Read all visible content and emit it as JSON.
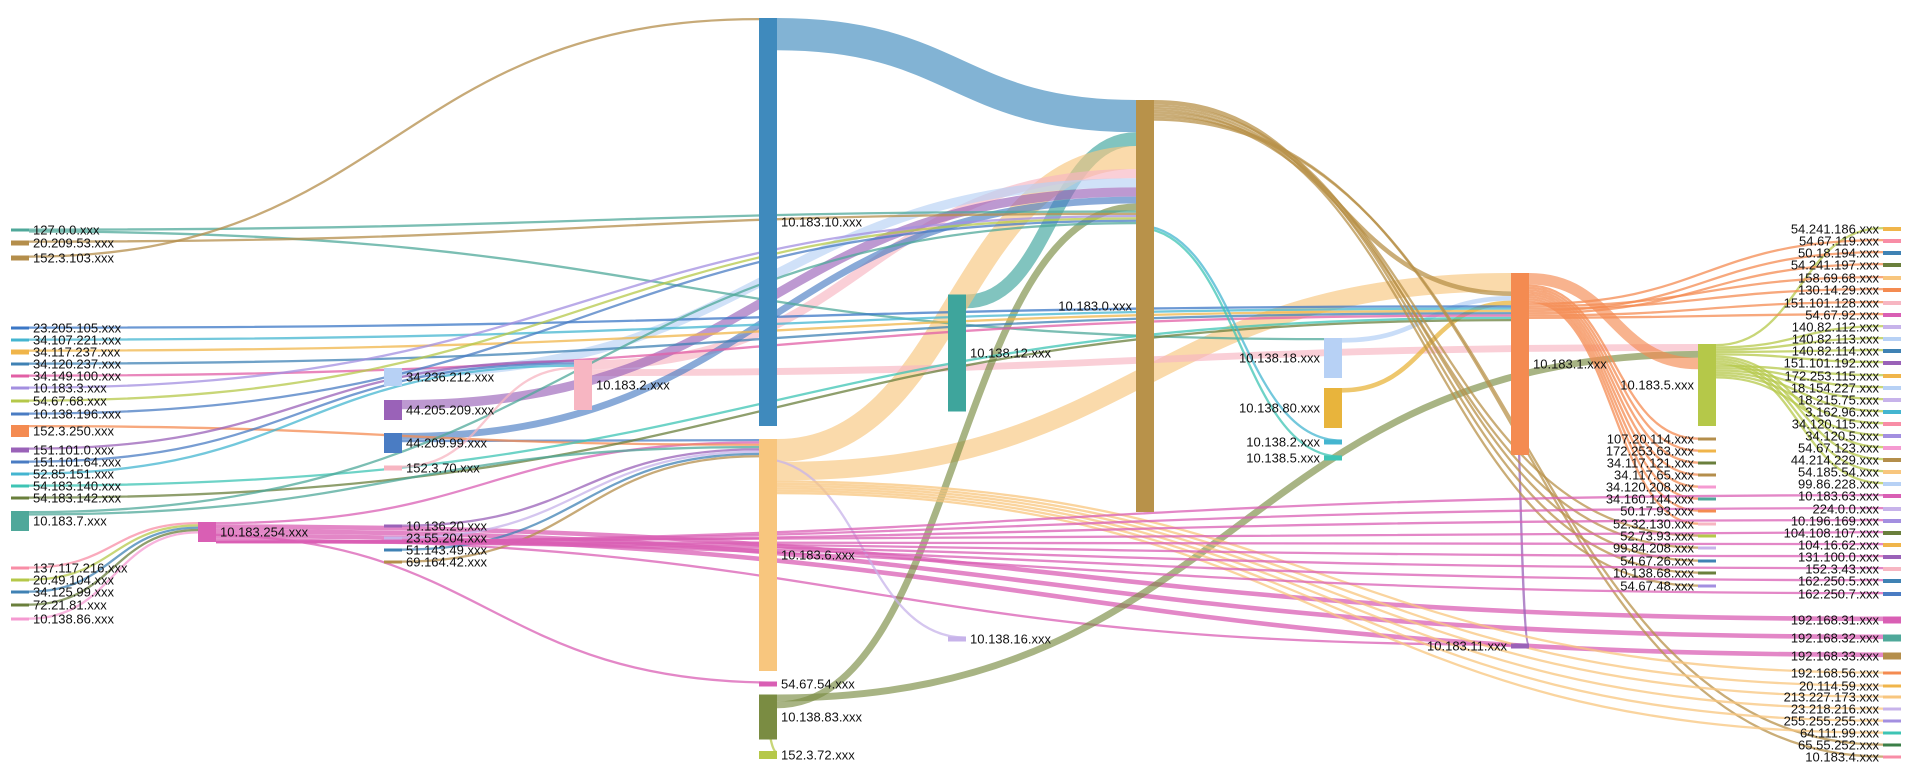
{
  "diagram": {
    "type": "sankey",
    "nodes": [
      {
        "id": "127.0.0.xxx",
        "color": "#4fa89a"
      },
      {
        "id": "20.209.53.xxx",
        "color": "#b48e4b"
      },
      {
        "id": "152.3.103.xxx",
        "color": "#b48e4b"
      },
      {
        "id": "23.205.105.xxx",
        "color": "#3b77c6"
      },
      {
        "id": "34.107.221.xxx",
        "color": "#44b5d0"
      },
      {
        "id": "34.117.237.xxx",
        "color": "#f0b54a"
      },
      {
        "id": "34.120.237.xxx",
        "color": "#3f82b4"
      },
      {
        "id": "34.149.100.xxx",
        "color": "#e25fa5"
      },
      {
        "id": "10.183.3.xxx",
        "color": "#a38fe0"
      },
      {
        "id": "54.67.68.xxx",
        "color": "#b5c849"
      },
      {
        "id": "10.138.196.xxx",
        "color": "#4a7cc3"
      },
      {
        "id": "152.3.250.xxx",
        "color": "#f48b51"
      },
      {
        "id": "151.101.0.xxx",
        "color": "#9a62b8"
      },
      {
        "id": "151.101.64.xxx",
        "color": "#4a7cc3"
      },
      {
        "id": "52.85.151.xxx",
        "color": "#44b5d0"
      },
      {
        "id": "54.183.140.xxx",
        "color": "#3ec4b4"
      },
      {
        "id": "54.183.142.xxx",
        "color": "#6a7f3c"
      },
      {
        "id": "10.183.7.xxx",
        "color": "#4fa89a"
      },
      {
        "id": "137.117.216.xxx",
        "color": "#f88da6"
      },
      {
        "id": "20.49.104.xxx",
        "color": "#b5c849"
      },
      {
        "id": "34.125.99.xxx",
        "color": "#3f82b4"
      },
      {
        "id": "72.21.81.xxx",
        "color": "#6a7f3c"
      },
      {
        "id": "10.138.86.xxx",
        "color": "#f59ad1"
      },
      {
        "id": "34.236.212.xxx",
        "color": "#b7d1f5"
      },
      {
        "id": "44.205.209.xxx",
        "color": "#9a62b8"
      },
      {
        "id": "44.209.99.xxx",
        "color": "#4a7cc3"
      },
      {
        "id": "152.3.70.xxx",
        "color": "#f7b6c2"
      },
      {
        "id": "10.183.254.xxx",
        "color": "#d95fb4"
      },
      {
        "id": "10.136.20.xxx",
        "color": "#9a62b8"
      },
      {
        "id": "23.55.204.xxx",
        "color": "#c7b3ea"
      },
      {
        "id": "51.143.49.xxx",
        "color": "#3f82b4"
      },
      {
        "id": "69.164.42.xxx",
        "color": "#b48e4b"
      },
      {
        "id": "10.183.2.xxx",
        "color": "#f7b6c2"
      },
      {
        "id": "10.183.10.xxx",
        "color": "#3f8abd"
      },
      {
        "id": "10.183.6.xxx",
        "color": "#f8c67e"
      },
      {
        "id": "54.67.54.xxx",
        "color": "#d95fb4"
      },
      {
        "id": "10.138.83.xxx",
        "color": "#7a8c42"
      },
      {
        "id": "152.3.72.xxx",
        "color": "#b5c849"
      },
      {
        "id": "10.138.12.xxx",
        "color": "#3ea59c"
      },
      {
        "id": "10.138.16.xxx",
        "color": "#c7b3ea"
      },
      {
        "id": "10.183.0.xxx",
        "color": "#b8924a"
      },
      {
        "id": "10.138.18.xxx",
        "color": "#b7d1f5"
      },
      {
        "id": "10.138.80.xxx",
        "color": "#e8b43c"
      },
      {
        "id": "10.138.2.xxx",
        "color": "#44b5d0"
      },
      {
        "id": "10.138.5.xxx",
        "color": "#3ec4b4"
      },
      {
        "id": "10.183.1.xxx",
        "color": "#f48b51"
      },
      {
        "id": "10.183.11.xxx",
        "color": "#9a62b8"
      },
      {
        "id": "107.20.114.xxx",
        "color": "#b48e4b"
      },
      {
        "id": "172.253.63.xxx",
        "color": "#f0b54a"
      },
      {
        "id": "34.117.121.xxx",
        "color": "#6a7f3c"
      },
      {
        "id": "34.117.65.xxx",
        "color": "#b48e4b"
      },
      {
        "id": "34.120.208.xxx",
        "color": "#f59ad1"
      },
      {
        "id": "34.160.144.xxx",
        "color": "#4fa89a"
      },
      {
        "id": "50.17.93.xxx",
        "color": "#f48b51"
      },
      {
        "id": "52.32.130.xxx",
        "color": "#f7b6c2"
      },
      {
        "id": "52.73.93.xxx",
        "color": "#b5c849"
      },
      {
        "id": "99.84.208.xxx",
        "color": "#c7b3ea"
      },
      {
        "id": "54.67.26.xxx",
        "color": "#3f82b4"
      },
      {
        "id": "10.138.68.xxx",
        "color": "#6a7f3c"
      },
      {
        "id": "54.67.48.xxx",
        "color": "#a38fe0"
      },
      {
        "id": "10.183.5.xxx",
        "color": "#b5c849"
      },
      {
        "id": "54.241.186.xxx",
        "color": "#f0b54a"
      },
      {
        "id": "54.67.119.xxx",
        "color": "#f88da6"
      },
      {
        "id": "50.18.194.xxx",
        "color": "#3f82b4"
      },
      {
        "id": "54.241.197.xxx",
        "color": "#6a7f3c"
      },
      {
        "id": "158.69.68.xxx",
        "color": "#f8c67e"
      },
      {
        "id": "130.14.29.xxx",
        "color": "#f48b51"
      },
      {
        "id": "151.101.128.xxx",
        "color": "#f7b6c2"
      },
      {
        "id": "54.67.92.xxx",
        "color": "#d95fb4"
      },
      {
        "id": "140.82.112.xxx",
        "color": "#c7b3ea"
      },
      {
        "id": "140.82.113.xxx",
        "color": "#b7d1f5"
      },
      {
        "id": "140.82.114.xxx",
        "color": "#3f82b4"
      },
      {
        "id": "151.101.192.xxx",
        "color": "#9a62b8"
      },
      {
        "id": "172.253.115.xxx",
        "color": "#f0b54a"
      },
      {
        "id": "18.154.227.xxx",
        "color": "#b7d1f5"
      },
      {
        "id": "18.215.75.xxx",
        "color": "#c7b3ea"
      },
      {
        "id": "3.162.96.xxx",
        "color": "#44b5d0"
      },
      {
        "id": "34.120.115.xxx",
        "color": "#f88da6"
      },
      {
        "id": "34.120.5.xxx",
        "color": "#a38fe0"
      },
      {
        "id": "54.67.123.xxx",
        "color": "#f59ad1"
      },
      {
        "id": "44.214.229.xxx",
        "color": "#b48e4b"
      },
      {
        "id": "54.185.54.xxx",
        "color": "#f8c67e"
      },
      {
        "id": "99.86.228.xxx",
        "color": "#b7d1f5"
      },
      {
        "id": "10.183.63.xxx",
        "color": "#d95fb4"
      },
      {
        "id": "224.0.0.xxx",
        "color": "#c7b3ea"
      },
      {
        "id": "10.196.169.xxx",
        "color": "#a38fe0"
      },
      {
        "id": "104.108.107.xxx",
        "color": "#6a7f3c"
      },
      {
        "id": "104.16.62.xxx",
        "color": "#f0b54a"
      },
      {
        "id": "131.100.0.xxx",
        "color": "#9a62b8"
      },
      {
        "id": "152.3.43.xxx",
        "color": "#f7b6c2"
      },
      {
        "id": "162.250.5.xxx",
        "color": "#3f82b4"
      },
      {
        "id": "162.250.7.xxx",
        "color": "#4a7cc3"
      },
      {
        "id": "192.168.31.xxx",
        "color": "#d95fb4"
      },
      {
        "id": "192.168.32.xxx",
        "color": "#4fa89a"
      },
      {
        "id": "192.168.33.xxx",
        "color": "#b48e4b"
      },
      {
        "id": "192.168.56.xxx",
        "color": "#f48b51"
      },
      {
        "id": "20.114.59.xxx",
        "color": "#f0b54a"
      },
      {
        "id": "213.227.173.xxx",
        "color": "#f8c67e"
      },
      {
        "id": "23.218.216.xxx",
        "color": "#c7b3ea"
      },
      {
        "id": "255.255.255.xxx",
        "color": "#a38fe0"
      },
      {
        "id": "64.111.99.xxx",
        "color": "#3ec4b4"
      },
      {
        "id": "65.55.252.xxx",
        "color": "#3b7f47"
      },
      {
        "id": "10.183.4.xxx",
        "color": "#f88da6"
      }
    ],
    "links": [
      {
        "source": "10.183.10.xxx",
        "target": "10.183.0.xxx",
        "value": 14
      },
      {
        "source": "10.138.12.xxx",
        "target": "10.183.0.xxx",
        "value": 6
      },
      {
        "source": "10.183.6.xxx",
        "target": "10.183.0.xxx",
        "value": 10
      },
      {
        "source": "10.183.6.xxx",
        "target": "10.183.1.xxx",
        "value": 8
      },
      {
        "source": "10.183.2.xxx",
        "target": "10.183.0.xxx",
        "value": 4
      },
      {
        "source": "10.183.2.xxx",
        "target": "10.183.5.xxx",
        "value": 3
      },
      {
        "source": "34.236.212.xxx",
        "target": "10.183.0.xxx",
        "value": 4
      },
      {
        "source": "44.205.209.xxx",
        "target": "10.183.0.xxx",
        "value": 4
      },
      {
        "source": "44.209.99.xxx",
        "target": "10.183.0.xxx",
        "value": 3
      },
      {
        "source": "44.209.99.xxx",
        "target": "10.183.6.xxx",
        "value": 1
      },
      {
        "source": "10.183.254.xxx",
        "target": "10.183.6.xxx",
        "value": 1
      },
      {
        "source": "10.183.254.xxx",
        "target": "192.168.31.xxx",
        "value": 2
      },
      {
        "source": "10.183.254.xxx",
        "target": "192.168.32.xxx",
        "value": 2
      },
      {
        "source": "10.183.254.xxx",
        "target": "192.168.33.xxx",
        "value": 2
      },
      {
        "source": "10.183.254.xxx",
        "target": "10.183.11.xxx",
        "value": 1
      },
      {
        "source": "10.138.83.xxx",
        "target": "10.183.5.xxx",
        "value": 3
      },
      {
        "source": "10.138.83.xxx",
        "target": "10.183.0.xxx",
        "value": 3
      },
      {
        "source": "10.183.1.xxx",
        "target": "10.183.5.xxx",
        "value": 5
      },
      {
        "source": "10.183.0.xxx",
        "target": "10.183.1.xxx",
        "value": 2
      },
      {
        "source": "10.138.18.xxx",
        "target": "10.183.1.xxx",
        "value": 2
      },
      {
        "source": "10.138.80.xxx",
        "target": "10.183.1.xxx",
        "value": 2
      },
      {
        "source": "10.183.5.xxx",
        "target": "54.241.186.xxx",
        "value": 1
      },
      {
        "source": "10.183.5.xxx",
        "target": "140.82.112.xxx",
        "value": 1
      },
      {
        "source": "10.183.5.xxx",
        "target": "140.82.113.xxx",
        "value": 1
      },
      {
        "source": "10.183.5.xxx",
        "target": "140.82.114.xxx",
        "value": 1
      },
      {
        "source": "10.183.5.xxx",
        "target": "151.101.192.xxx",
        "value": 1
      },
      {
        "source": "10.183.1.xxx",
        "target": "107.20.114.xxx",
        "value": 1
      },
      {
        "source": "10.183.1.xxx",
        "target": "172.253.63.xxx",
        "value": 1
      },
      {
        "source": "10.183.1.xxx",
        "target": "34.117.121.xxx",
        "value": 1
      },
      {
        "source": "10.183.1.xxx",
        "target": "34.117.65.xxx",
        "value": 1
      },
      {
        "source": "10.183.1.xxx",
        "target": "34.120.208.xxx",
        "value": 1
      },
      {
        "source": "10.183.1.xxx",
        "target": "34.160.144.xxx",
        "value": 1
      },
      {
        "source": "10.183.1.xxx",
        "target": "50.17.93.xxx",
        "value": 1
      },
      {
        "source": "10.183.1.xxx",
        "target": "52.32.130.xxx",
        "value": 1
      },
      {
        "source": "10.183.1.xxx",
        "target": "54.67.119.xxx",
        "value": 1
      },
      {
        "source": "10.183.1.xxx",
        "target": "158.69.68.xxx",
        "value": 1
      },
      {
        "source": "10.183.1.xxx",
        "target": "130.14.29.xxx",
        "value": 1
      },
      {
        "source": "127.0.0.xxx",
        "target": "10.183.0.xxx",
        "value": 1
      },
      {
        "source": "127.0.0.xxx",
        "target": "10.138.18.xxx",
        "value": 1
      },
      {
        "source": "20.209.53.xxx",
        "target": "10.183.0.xxx",
        "value": 1
      },
      {
        "source": "152.3.103.xxx",
        "target": "10.183.10.xxx",
        "value": 1
      },
      {
        "source": "23.205.105.xxx",
        "target": "10.183.1.xxx",
        "value": 1
      },
      {
        "source": "34.107.221.xxx",
        "target": "10.183.1.xxx",
        "value": 1
      },
      {
        "source": "34.117.237.xxx",
        "target": "10.183.1.xxx",
        "value": 1
      },
      {
        "source": "34.120.237.xxx",
        "target": "10.183.1.xxx",
        "value": 1
      },
      {
        "source": "34.149.100.xxx",
        "target": "10.183.1.xxx",
        "value": 1
      },
      {
        "source": "10.183.3.xxx",
        "target": "10.183.0.xxx",
        "value": 1
      },
      {
        "source": "54.67.68.xxx",
        "target": "10.183.0.xxx",
        "value": 1
      },
      {
        "source": "10.138.196.xxx",
        "target": "10.183.0.xxx",
        "value": 1
      },
      {
        "source": "152.3.250.xxx",
        "target": "10.183.6.xxx",
        "value": 1
      },
      {
        "source": "151.101.0.xxx",
        "target": "10.183.2.xxx",
        "value": 1
      },
      {
        "source": "151.101.64.xxx",
        "target": "10.183.2.xxx",
        "value": 1
      },
      {
        "source": "52.85.151.xxx",
        "target": "10.183.2.xxx",
        "value": 1
      },
      {
        "source": "54.183.140.xxx",
        "target": "10.183.1.xxx",
        "value": 1
      },
      {
        "source": "54.183.142.xxx",
        "target": "10.183.1.xxx",
        "value": 1
      },
      {
        "source": "10.183.7.xxx",
        "target": "10.183.0.xxx",
        "value": 1
      },
      {
        "source": "10.183.7.xxx",
        "target": "10.183.6.xxx",
        "value": 1
      },
      {
        "source": "137.117.216.xxx",
        "target": "10.183.254.xxx",
        "value": 1
      },
      {
        "source": "20.49.104.xxx",
        "target": "10.183.254.xxx",
        "value": 1
      },
      {
        "source": "34.125.99.xxx",
        "target": "10.183.254.xxx",
        "value": 1
      },
      {
        "source": "72.21.81.xxx",
        "target": "10.183.254.xxx",
        "value": 1
      },
      {
        "source": "10.138.86.xxx",
        "target": "10.183.254.xxx",
        "value": 1
      },
      {
        "source": "10.136.20.xxx",
        "target": "10.183.6.xxx",
        "value": 1
      },
      {
        "source": "23.55.204.xxx",
        "target": "10.183.6.xxx",
        "value": 1
      },
      {
        "source": "51.143.49.xxx",
        "target": "10.183.6.xxx",
        "value": 1
      },
      {
        "source": "69.164.42.xxx",
        "target": "10.183.6.xxx",
        "value": 1
      },
      {
        "source": "152.3.70.xxx",
        "target": "10.183.2.xxx",
        "value": 1
      },
      {
        "source": "54.67.54.xxx",
        "target": "10.183.254.xxx",
        "value": 1
      },
      {
        "source": "152.3.72.xxx",
        "target": "10.138.83.xxx",
        "value": 1
      },
      {
        "source": "10.138.16.xxx",
        "target": "10.183.6.xxx",
        "value": 1
      },
      {
        "source": "10.138.2.xxx",
        "target": "10.183.0.xxx",
        "value": 1
      },
      {
        "source": "10.138.5.xxx",
        "target": "10.183.0.xxx",
        "value": 1
      },
      {
        "source": "10.183.11.xxx",
        "target": "10.183.1.xxx",
        "value": 1
      },
      {
        "source": "10.183.0.xxx",
        "target": "54.67.26.xxx",
        "value": 1
      },
      {
        "source": "10.183.0.xxx",
        "target": "10.138.68.xxx",
        "value": 1
      },
      {
        "source": "10.183.0.xxx",
        "target": "54.67.48.xxx",
        "value": 1
      },
      {
        "source": "10.183.0.xxx",
        "target": "52.73.93.xxx",
        "value": 1
      },
      {
        "source": "10.183.0.xxx",
        "target": "99.84.208.xxx",
        "value": 1
      },
      {
        "source": "10.183.0.xxx",
        "target": "10.183.4.xxx",
        "value": 1
      },
      {
        "source": "10.183.0.xxx",
        "target": "65.55.252.xxx",
        "value": 1
      },
      {
        "source": "10.183.6.xxx",
        "target": "192.168.56.xxx",
        "value": 1
      },
      {
        "source": "10.183.6.xxx",
        "target": "20.114.59.xxx",
        "value": 1
      },
      {
        "source": "10.183.6.xxx",
        "target": "213.227.173.xxx",
        "value": 1
      },
      {
        "source": "10.183.6.xxx",
        "target": "23.218.216.xxx",
        "value": 1
      },
      {
        "source": "10.183.6.xxx",
        "target": "255.255.255.xxx",
        "value": 1
      },
      {
        "source": "10.183.6.xxx",
        "target": "64.111.99.xxx",
        "value": 1
      },
      {
        "source": "10.183.254.xxx",
        "target": "224.0.0.xxx",
        "value": 1
      },
      {
        "source": "10.183.254.xxx",
        "target": "10.196.169.xxx",
        "value": 1
      },
      {
        "source": "10.183.254.xxx",
        "target": "104.108.107.xxx",
        "value": 1
      },
      {
        "source": "10.183.254.xxx",
        "target": "104.16.62.xxx",
        "value": 1
      },
      {
        "source": "10.183.254.xxx",
        "target": "131.100.0.xxx",
        "value": 1
      },
      {
        "source": "10.183.254.xxx",
        "target": "152.3.43.xxx",
        "value": 1
      },
      {
        "source": "10.183.254.xxx",
        "target": "162.250.5.xxx",
        "value": 1
      },
      {
        "source": "10.183.254.xxx",
        "target": "162.250.7.xxx",
        "value": 1
      },
      {
        "source": "10.183.254.xxx",
        "target": "10.183.63.xxx",
        "value": 1
      },
      {
        "source": "10.183.5.xxx",
        "target": "54.67.123.xxx",
        "value": 1
      },
      {
        "source": "10.183.5.xxx",
        "target": "44.214.229.xxx",
        "value": 1
      },
      {
        "source": "10.183.5.xxx",
        "target": "54.185.54.xxx",
        "value": 1
      },
      {
        "source": "10.183.5.xxx",
        "target": "99.86.228.xxx",
        "value": 1
      },
      {
        "source": "10.183.5.xxx",
        "target": "172.253.115.xxx",
        "value": 1
      },
      {
        "source": "10.183.5.xxx",
        "target": "18.154.227.xxx",
        "value": 1
      },
      {
        "source": "10.183.5.xxx",
        "target": "18.215.75.xxx",
        "value": 1
      },
      {
        "source": "10.183.5.xxx",
        "target": "3.162.96.xxx",
        "value": 1
      },
      {
        "source": "10.183.5.xxx",
        "target": "34.120.115.xxx",
        "value": 1
      },
      {
        "source": "10.183.5.xxx",
        "target": "34.120.5.xxx",
        "value": 1
      },
      {
        "source": "10.183.1.xxx",
        "target": "50.18.194.xxx",
        "value": 1
      },
      {
        "source": "10.183.1.xxx",
        "target": "54.241.197.xxx",
        "value": 1
      },
      {
        "source": "10.183.1.xxx",
        "target": "151.101.128.xxx",
        "value": 1
      },
      {
        "source": "10.183.1.xxx",
        "target": "54.67.92.xxx",
        "value": 1
      }
    ]
  }
}
